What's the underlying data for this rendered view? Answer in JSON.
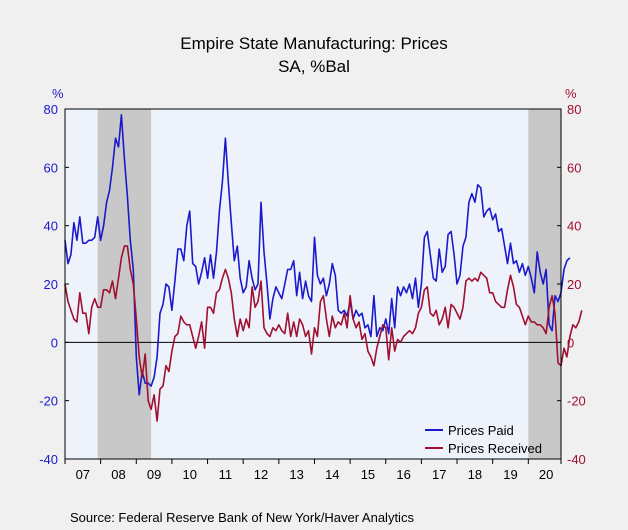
{
  "chart_data": {
    "type": "line",
    "title": "Empire State Manufacturing: Prices",
    "subtitle": "SA, %Bal",
    "source": "Source:  Federal Reserve Bank of New York/Haver Analytics",
    "left_unit": "%",
    "right_unit": "%",
    "ylim": [
      -40,
      80
    ],
    "yticks": [
      -40,
      -20,
      0,
      20,
      40,
      60,
      80
    ],
    "ytick_labels": [
      "-40",
      "-20",
      "0",
      "20",
      "40",
      "60",
      "80"
    ],
    "xlim": [
      2007.0,
      2020.917
    ],
    "xticks": [
      2007,
      2008,
      2009,
      2010,
      2011,
      2012,
      2013,
      2014,
      2015,
      2016,
      2017,
      2018,
      2019,
      2020
    ],
    "xtick_labels": [
      "07",
      "08",
      "09",
      "10",
      "11",
      "12",
      "13",
      "14",
      "15",
      "16",
      "17",
      "18",
      "19",
      "20"
    ],
    "recessions": [
      [
        2007.917,
        2009.417
      ],
      [
        2020.0,
        2020.917
      ]
    ],
    "legend_position": "bottom-right",
    "colors": {
      "plot_bg": "#eef3fb",
      "page_bg": "#f0f0f0",
      "recession": "#c8c8c8",
      "prices_paid": "#1a1acc",
      "prices_received": "#a01030",
      "left_axis": "#1a1acc",
      "right_axis": "#a01030"
    },
    "series": [
      {
        "name": "Prices Paid",
        "color": "#1a1acc",
        "x_start": 2007.0,
        "step": 0.0833333,
        "values": [
          35,
          27,
          30,
          41,
          35,
          43,
          34,
          34,
          35,
          35,
          36,
          43,
          35,
          40,
          48,
          52,
          60,
          70,
          67,
          78,
          63,
          50,
          35,
          25,
          -5,
          -18,
          -10,
          -14,
          -14,
          -15,
          -12,
          -5,
          10,
          13,
          20,
          19,
          11,
          21,
          32,
          32,
          28,
          40,
          45,
          27,
          26,
          20,
          24,
          29,
          22,
          30,
          22,
          31,
          45,
          55,
          70,
          55,
          41,
          28,
          33,
          22,
          17,
          19,
          28,
          22,
          18,
          20,
          48,
          31,
          20,
          8,
          15,
          19,
          17,
          15,
          20,
          25,
          25,
          28,
          16,
          24,
          15,
          21,
          16,
          14,
          36,
          23,
          20,
          22,
          16,
          20,
          27,
          23,
          11,
          10,
          11,
          9,
          14,
          8,
          11,
          9,
          10,
          5,
          6,
          2,
          16,
          2,
          5,
          4,
          8,
          3,
          15,
          5,
          19,
          16,
          19,
          17,
          20,
          15,
          22,
          12,
          20,
          36,
          38,
          30,
          22,
          21,
          32,
          24,
          26,
          37,
          38,
          30,
          20,
          23,
          33,
          36,
          48,
          51,
          48,
          54,
          53,
          43,
          45,
          46,
          42,
          44,
          38,
          39,
          33,
          27,
          34,
          27,
          28,
          24,
          27,
          23,
          26,
          22,
          17,
          31,
          24,
          20,
          25,
          6,
          4,
          16,
          14,
          17,
          25,
          28,
          29
        ]
      },
      {
        "name": "Prices Received",
        "color": "#a01030",
        "x_start": 2007.0,
        "step": 0.0833333,
        "values": [
          20,
          14,
          11,
          8,
          7,
          17,
          10,
          10,
          3,
          12,
          15,
          12,
          12,
          18,
          18,
          17,
          21,
          15,
          22,
          29,
          33,
          33,
          25,
          20,
          8,
          -5,
          -12,
          -4,
          -20,
          -23,
          -18,
          -27,
          -16,
          -15,
          -8,
          -10,
          -3,
          2,
          3,
          9,
          7,
          6,
          6,
          2,
          -2,
          2,
          7,
          -2,
          12,
          12,
          10,
          17,
          18,
          22,
          25,
          22,
          17,
          8,
          2,
          8,
          4,
          8,
          5,
          19,
          12,
          14,
          21,
          5,
          3,
          2,
          5,
          4,
          6,
          4,
          3,
          10,
          2,
          7,
          2,
          8,
          6,
          2,
          4,
          -4,
          5,
          2,
          14,
          16,
          8,
          2,
          9,
          5,
          7,
          6,
          10,
          5,
          16,
          8,
          5,
          7,
          1,
          3,
          -3,
          -5,
          -8,
          -2,
          2,
          6,
          5,
          -6,
          5,
          -3,
          1,
          0,
          2,
          3,
          4,
          3,
          5,
          10,
          12,
          18,
          19,
          10,
          9,
          11,
          6,
          8,
          12,
          5,
          13,
          12,
          10,
          8,
          12,
          21,
          22,
          21,
          22,
          21,
          24,
          23,
          22,
          17,
          17,
          14,
          13,
          12,
          12,
          18,
          23,
          19,
          13,
          12,
          9,
          6,
          9,
          7,
          7,
          6,
          6,
          5,
          3,
          12,
          16,
          10,
          -7,
          -8,
          -2,
          -5,
          2,
          6,
          5,
          7,
          11
        ]
      }
    ]
  }
}
